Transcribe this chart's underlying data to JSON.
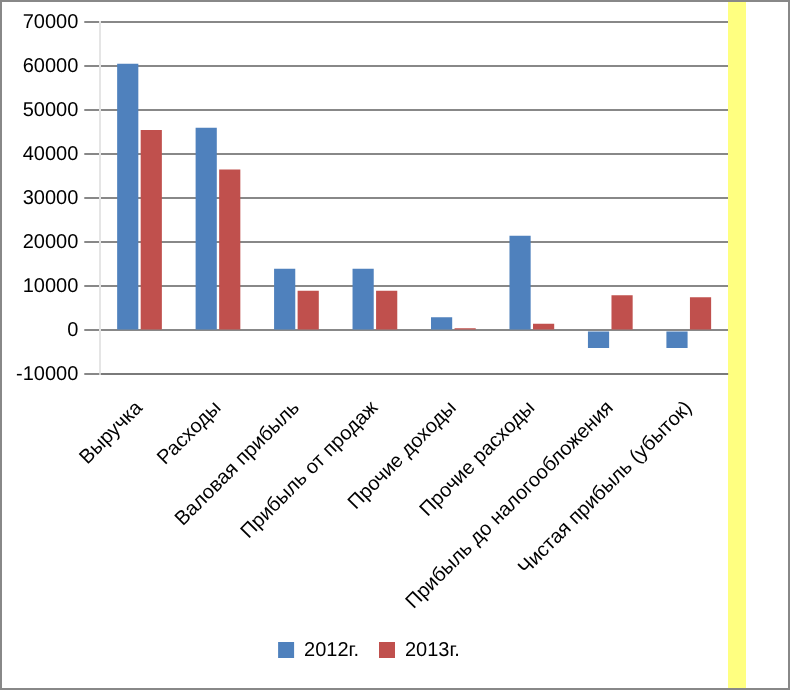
{
  "chart_data": {
    "type": "bar",
    "categories": [
      "Выручка",
      "Расходы",
      "Валовая прибыль",
      "Прибыль от продаж",
      "Прочие доходы",
      "Прочие расходы",
      "Прибыль до налогообложения",
      "Чистая прибыль (убыток)"
    ],
    "series": [
      {
        "name": "2012г.",
        "color": "#4f81bd",
        "values": [
          60500,
          46000,
          14000,
          14000,
          3000,
          21500,
          -4000,
          -4000
        ]
      },
      {
        "name": "2013г.",
        "color": "#c0504d",
        "values": [
          45500,
          36500,
          9000,
          9000,
          500,
          1500,
          8000,
          7500
        ]
      }
    ],
    "ylim": [
      -10000,
      70000
    ],
    "yticks": [
      -10000,
      0,
      10000,
      20000,
      30000,
      40000,
      50000,
      60000,
      70000
    ],
    "grid": "y",
    "legend": "bottom"
  }
}
